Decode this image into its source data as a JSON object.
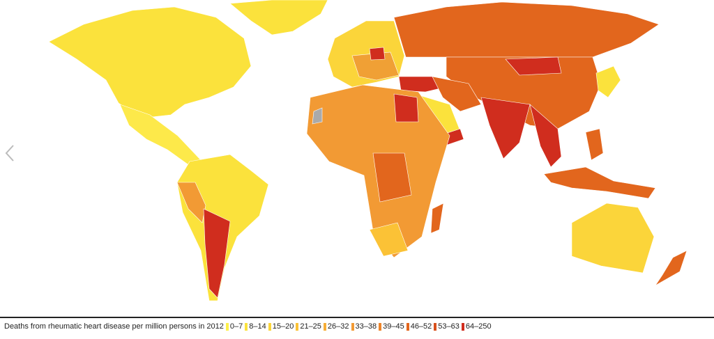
{
  "caption": "Deaths from rheumatic heart disease per million persons in 2012",
  "legend": [
    {
      "label": "0–7",
      "color": "#fdf04a"
    },
    {
      "label": "8–14",
      "color": "#fbe23c"
    },
    {
      "label": "15–20",
      "color": "#fbd53a"
    },
    {
      "label": "21–25",
      "color": "#fbc236"
    },
    {
      "label": "26–32",
      "color": "#f6ad36"
    },
    {
      "label": "33–38",
      "color": "#f29a34"
    },
    {
      "label": "39–45",
      "color": "#ed852b"
    },
    {
      "label": "46–52",
      "color": "#e2661d"
    },
    {
      "label": "53–63",
      "color": "#d8501c"
    },
    {
      "label": "64–250",
      "color": "#d02d1e"
    }
  ]
}
